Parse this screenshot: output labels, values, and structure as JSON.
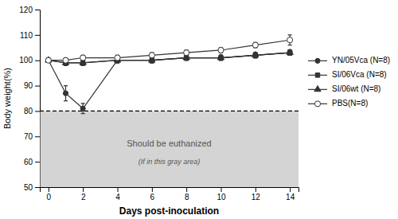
{
  "chart_data": {
    "type": "line",
    "xlabel": "Days  post-inoculation",
    "ylabel": "Body weight(%)",
    "x": [
      0,
      1,
      2,
      4,
      6,
      8,
      10,
      12,
      14
    ],
    "series": [
      {
        "name": "YN/05Vca (N=8)",
        "color": "#333333",
        "marker": "circle",
        "line_style": "solid",
        "values": [
          100,
          87,
          81,
          100,
          100,
          101,
          101,
          102,
          103
        ],
        "errors": [
          0,
          3,
          2,
          1,
          1,
          1,
          1,
          1,
          1
        ]
      },
      {
        "name": "SI/06Vca (N=8)",
        "color": "#333333",
        "marker": "square",
        "line_style": "solid",
        "values": [
          100,
          99,
          99,
          100,
          100,
          101,
          101,
          102,
          103
        ],
        "errors": [
          0,
          1,
          1,
          1,
          1,
          1,
          1,
          1,
          1
        ]
      },
      {
        "name": "SI/06wt (N=8)",
        "color": "#333333",
        "marker": "triangle",
        "line_style": "solid",
        "values": [
          100,
          99,
          99,
          100,
          100,
          101,
          101,
          102,
          103
        ],
        "errors": [
          0,
          1,
          1,
          1,
          1,
          1,
          1,
          1,
          1
        ]
      },
      {
        "name": "PBS(N=8)",
        "color": "#333333",
        "marker": "circle-open",
        "line_style": "solid",
        "values": [
          100,
          100,
          101,
          101,
          102,
          103,
          104,
          106,
          108
        ],
        "errors": [
          0,
          1,
          1,
          1,
          1,
          1,
          1,
          1,
          2
        ]
      }
    ],
    "xlim": [
      -0.5,
      14.5
    ],
    "ylim": [
      50,
      120
    ],
    "xticks": [
      0,
      2,
      4,
      6,
      8,
      10,
      12,
      14
    ],
    "yticks": [
      50,
      60,
      70,
      80,
      90,
      100,
      110,
      120
    ],
    "band": {
      "from": 50,
      "to": 80,
      "color": "#b0b0b0"
    },
    "reference_line": {
      "y": 80,
      "line_style": "dashed"
    },
    "annotations": [
      {
        "text": "Should be euthanized",
        "x": 7,
        "y": 67
      },
      {
        "text": "(If in this gray area)",
        "x": 7,
        "y": 60
      }
    ],
    "legend": "right",
    "grid": false
  }
}
